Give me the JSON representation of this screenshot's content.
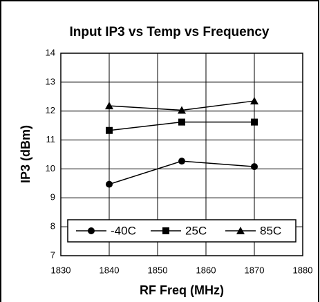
{
  "chart_data": {
    "type": "line",
    "title": "Input IP3 vs Temp vs Frequency",
    "x_label": "RF Freq (MHz)",
    "y_label": "IP3 (dBm)",
    "x": [
      1840,
      1855,
      1870
    ],
    "series": [
      {
        "name": "-40C",
        "color": "#000000",
        "marker": "circle",
        "values": [
          9.47,
          10.27,
          10.08
        ]
      },
      {
        "name": "25C",
        "color": "#000000",
        "marker": "square",
        "values": [
          11.33,
          11.62,
          11.62
        ]
      },
      {
        "name": "85C",
        "color": "#000000",
        "marker": "triangle",
        "values": [
          12.18,
          12.03,
          12.35
        ]
      }
    ],
    "xlim": [
      1830,
      1880
    ],
    "xticks": [
      1830,
      1840,
      1850,
      1860,
      1870,
      1880
    ],
    "ylim": [
      7,
      14
    ],
    "yticks": [
      7,
      8,
      9,
      10,
      11,
      12,
      13,
      14
    ],
    "grid": true,
    "legend": "lower center"
  }
}
